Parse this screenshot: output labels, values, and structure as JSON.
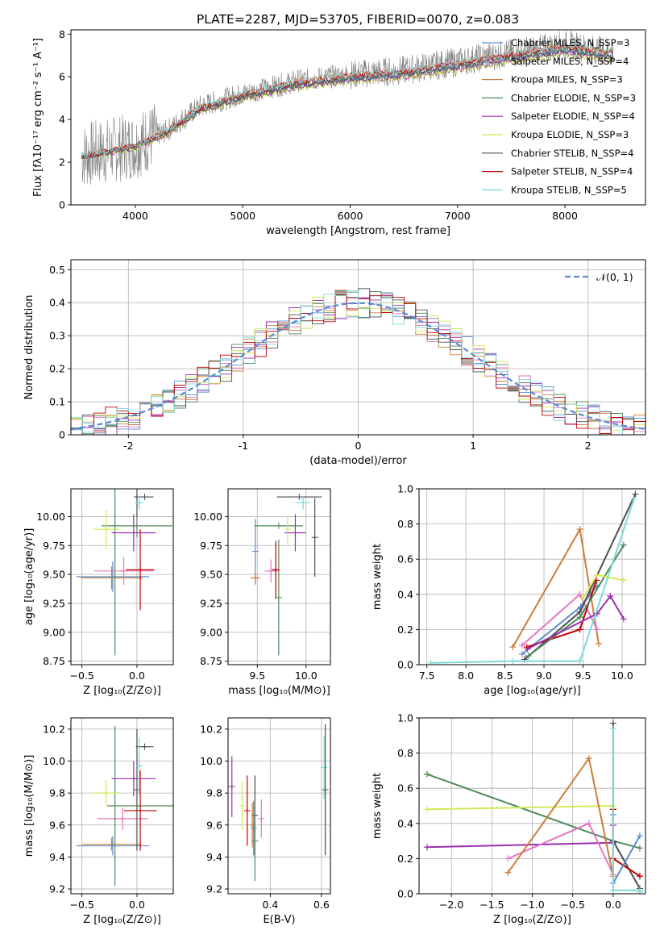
{
  "figure": {
    "title": "PLATE=2287, MJD=53705, FIBERID=0070, z=0.083"
  },
  "chart_data": [
    {
      "id": "spectrum",
      "type": "line",
      "xlabel": "wavelength [Angstrom, rest frame]",
      "ylabel": "Flux [fλ10⁻¹⁷ erg cm⁻² s⁻¹ A⁻¹]",
      "xlim": [
        3400,
        8750
      ],
      "ylim": [
        0,
        8.2
      ],
      "xticks": [
        4000,
        5000,
        6000,
        7000,
        8000
      ],
      "yticks": [
        0,
        2,
        4,
        6,
        8
      ],
      "legend_position": "right",
      "observed_color": "#808080",
      "observed_trend": {
        "x": [
          3500,
          3700,
          4000,
          4300,
          4600,
          5000,
          5500,
          6000,
          6500,
          7000,
          7500,
          8000,
          8400
        ],
        "y": [
          2.3,
          2.5,
          2.8,
          3.5,
          4.6,
          5.2,
          5.8,
          6.1,
          6.3,
          6.7,
          7.1,
          7.5,
          7.2
        ]
      },
      "series": [
        {
          "name": "Chabrier MILES, N_SSP=3",
          "color": "#5b8bd0"
        },
        {
          "name": "Salpeter MILES, N_SSP=4",
          "color": "#e377c2"
        },
        {
          "name": "Kroupa MILES, N_SSP=3",
          "color": "#c87f3a"
        },
        {
          "name": "Chabrier ELODIE, N_SSP=3",
          "color": "#4f8a5b"
        },
        {
          "name": "Salpeter ELODIE, N_SSP=4",
          "color": "#9b2fae"
        },
        {
          "name": "Kroupa ELODIE, N_SSP=3",
          "color": "#d4e85a"
        },
        {
          "name": "Chabrier STELIB, N_SSP=4",
          "color": "#4d4d4d"
        },
        {
          "name": "Salpeter STELIB, N_SSP=4",
          "color": "#c00000"
        },
        {
          "name": "Kroupa STELIB, N_SSP=5",
          "color": "#7fd8d8"
        }
      ]
    },
    {
      "id": "residuals",
      "type": "line",
      "xlabel": "(data-model)/error",
      "ylabel": "Normed distribution",
      "xlim": [
        -2.5,
        2.5
      ],
      "ylim": [
        0,
        0.53
      ],
      "xticks": [
        -2,
        -1,
        0,
        1,
        2
      ],
      "yticks": [
        0.0,
        0.1,
        0.2,
        0.3,
        0.4,
        0.5
      ],
      "grid": true,
      "legend_position": "top-right",
      "reference": {
        "name": "𝒩(0, 1)",
        "color": "#5b8bd0",
        "style": "dashed"
      }
    },
    {
      "id": "age_vs_Z",
      "type": "scatter",
      "xlabel": "Z [log₁₀(Z/Z⊙)]",
      "ylabel": "age  [log₁₀(age/yr)]",
      "xlim": [
        -0.6,
        0.33
      ],
      "ylim": [
        8.72,
        10.24
      ],
      "xticks": [
        -0.5,
        0.0
      ],
      "xtick_labels": [
        "−0.5",
        "0.0"
      ],
      "yticks": [
        8.75,
        9.0,
        9.25,
        9.5,
        9.75,
        10.0
      ],
      "ytick_labels": [
        "8.75",
        "9.00",
        "9.25",
        "9.50",
        "9.75",
        "10.00"
      ],
      "grid": true,
      "points": [
        {
          "x": -0.22,
          "y": 9.48,
          "xerr": 0.33,
          "yerr": 0.13,
          "color": "#5b8bd0"
        },
        {
          "x": -0.12,
          "y": 9.53,
          "xerr": 0.27,
          "yerr": 0.12,
          "color": "#e377c2"
        },
        {
          "x": -0.23,
          "y": 9.47,
          "xerr": 0.28,
          "yerr": 0.1,
          "color": "#c87f3a"
        },
        {
          "x": 0.0,
          "y": 9.92,
          "xerr": 0.32,
          "yerr": 0.1,
          "color": "#4f8a5b"
        },
        {
          "x": -0.2,
          "y": 9.92,
          "xerr": 0.0,
          "yerr": 1.12,
          "color": "#4f8a5b"
        },
        {
          "x": -0.03,
          "y": 9.86,
          "xerr": 0.2,
          "yerr": 0.16,
          "color": "#9b2fae"
        },
        {
          "x": -0.28,
          "y": 9.89,
          "xerr": 0.12,
          "yerr": 0.17,
          "color": "#d4e85a"
        },
        {
          "x": 0.07,
          "y": 10.17,
          "xerr": 0.08,
          "yerr": 0.0,
          "color": "#4d4d4d"
        },
        {
          "x": 0.0,
          "y": 10.17,
          "xerr": 0.0,
          "yerr": 0.17,
          "color": "#4d4d4d"
        },
        {
          "x": 0.03,
          "y": 9.54,
          "xerr": 0.13,
          "yerr": 0.35,
          "color": "#c00000"
        },
        {
          "x": 0.02,
          "y": 10.12,
          "xerr": 0.04,
          "yerr": 0.06,
          "color": "#7fd8d8"
        }
      ]
    },
    {
      "id": "age_vs_mass",
      "type": "scatter",
      "xlabel": "mass [log₁₀(M/M⊙)]",
      "ylabel": "",
      "xlim": [
        9.2,
        10.25
      ],
      "ylim": [
        8.72,
        10.24
      ],
      "xticks": [
        9.5,
        10.0
      ],
      "xtick_labels": [
        "9.5",
        "10.0"
      ],
      "yticks": [
        8.75,
        9.0,
        9.25,
        9.5,
        9.75,
        10.0
      ],
      "ytick_labels": [
        "8.75",
        "9.00",
        "9.25",
        "9.50",
        "9.75",
        "10.00"
      ],
      "grid": true,
      "points": [
        {
          "x": 9.48,
          "y": 9.7,
          "xerr": 0.0,
          "yerr": 0.28,
          "color": "#5b8bd0"
        },
        {
          "x": 9.64,
          "y": 9.53,
          "xerr": 0.07,
          "yerr": 0.1,
          "color": "#e377c2"
        },
        {
          "x": 9.48,
          "y": 9.47,
          "xerr": 0.05,
          "yerr": 0.06,
          "color": "#c87f3a"
        },
        {
          "x": 9.72,
          "y": 9.92,
          "xerr": 0.25,
          "yerr": 0.0,
          "color": "#4f8a5b"
        },
        {
          "x": 9.72,
          "y": 9.3,
          "xerr": 0.0,
          "yerr": 0.5,
          "color": "#4f8a5b"
        },
        {
          "x": 9.89,
          "y": 9.86,
          "xerr": 0.11,
          "yerr": 0.16,
          "color": "#9b2fae"
        },
        {
          "x": 9.81,
          "y": 9.89,
          "xerr": 0.0,
          "yerr": 0.12,
          "color": "#d4e85a"
        },
        {
          "x": 9.93,
          "y": 10.17,
          "xerr": 0.23,
          "yerr": 0.0,
          "color": "#4d4d4d"
        },
        {
          "x": 10.09,
          "y": 9.82,
          "xerr": 0.0,
          "yerr": 0.34,
          "color": "#4d4d4d"
        },
        {
          "x": 9.69,
          "y": 9.54,
          "xerr": 0.04,
          "yerr": 0.25,
          "color": "#c00000"
        },
        {
          "x": 9.97,
          "y": 10.12,
          "xerr": 0.08,
          "yerr": 0.06,
          "color": "#7fd8d8"
        }
      ]
    },
    {
      "id": "massweight_vs_age",
      "type": "line",
      "xlabel": "age  [log₁₀(age/yr)]",
      "ylabel": "mass weight",
      "xlim": [
        7.4,
        10.3
      ],
      "ylim": [
        0,
        1.0
      ],
      "xticks": [
        7.5,
        8.0,
        8.5,
        9.0,
        9.5,
        10.0
      ],
      "xtick_labels": [
        "7.5",
        "8.0",
        "8.5",
        "9.0",
        "9.5",
        "10.0"
      ],
      "yticks": [
        0,
        0.2,
        0.4,
        0.6,
        0.8,
        1.0
      ],
      "ytick_labels": [
        "0.0",
        "0.2",
        "0.4",
        "0.6",
        "0.8",
        "1.0"
      ],
      "grid": true,
      "series": [
        {
          "color": "#c87f3a",
          "x": [
            8.6,
            9.46,
            9.7
          ],
          "y": [
            0.1,
            0.77,
            0.12
          ]
        },
        {
          "color": "#e377c2",
          "x": [
            8.72,
            9.46,
            9.68
          ],
          "y": [
            0.11,
            0.4,
            0.2
          ]
        },
        {
          "color": "#5b8bd0",
          "x": [
            8.72,
            9.47,
            9.68
          ],
          "y": [
            0.06,
            0.33,
            0.45
          ]
        },
        {
          "color": "#4d4d4d",
          "x": [
            8.75,
            9.46,
            10.17
          ],
          "y": [
            0.03,
            0.3,
            0.97
          ]
        },
        {
          "color": "#c00000",
          "x": [
            8.78,
            9.46,
            9.67
          ],
          "y": [
            0.1,
            0.2,
            0.48
          ]
        },
        {
          "color": "#4f8a5b",
          "x": [
            8.8,
            9.46,
            10.02
          ],
          "y": [
            0.05,
            0.27,
            0.68
          ]
        },
        {
          "color": "#9b2fae",
          "x": [
            8.79,
            9.68,
            9.85,
            10.02
          ],
          "y": [
            0.09,
            0.29,
            0.39,
            0.26
          ]
        },
        {
          "color": "#d4e85a",
          "x": [
            9.5,
            9.68,
            10.02
          ],
          "y": [
            0.38,
            0.51,
            0.48
          ]
        },
        {
          "color": "#7fd8d8",
          "x": [
            7.55,
            8.6,
            9.46,
            10.15
          ],
          "y": [
            0.01,
            0.02,
            0.02,
            0.94
          ]
        }
      ]
    },
    {
      "id": "mass_vs_Z",
      "type": "scatter",
      "xlabel": "Z [log₁₀(Z/Z⊙)]",
      "ylabel": "mass [log₁₀(M/M⊙)]",
      "xlim": [
        -0.6,
        0.33
      ],
      "ylim": [
        9.17,
        10.27
      ],
      "xticks": [
        -0.5,
        0.0
      ],
      "xtick_labels": [
        "−0.5",
        "0.0"
      ],
      "yticks": [
        9.2,
        9.4,
        9.6,
        9.8,
        10.0,
        10.2
      ],
      "ytick_labels": [
        "9.2",
        "9.4",
        "9.6",
        "9.8",
        "10.0",
        "10.2"
      ],
      "grid": true,
      "points": [
        {
          "x": -0.22,
          "y": 9.47,
          "xerr": 0.33,
          "yerr": 0.06,
          "color": "#5b8bd0"
        },
        {
          "x": -0.13,
          "y": 9.64,
          "xerr": 0.23,
          "yerr": 0.07,
          "color": "#e377c2"
        },
        {
          "x": -0.23,
          "y": 9.48,
          "xerr": 0.27,
          "yerr": 0.04,
          "color": "#c87f3a"
        },
        {
          "x": 0.03,
          "y": 9.72,
          "xerr": 0.3,
          "yerr": 0.0,
          "color": "#4f8a5b"
        },
        {
          "x": -0.2,
          "y": 9.72,
          "xerr": 0.0,
          "yerr": 0.5,
          "color": "#4f8a5b"
        },
        {
          "x": -0.03,
          "y": 9.89,
          "xerr": 0.2,
          "yerr": 0.11,
          "color": "#9b2fae"
        },
        {
          "x": -0.28,
          "y": 9.8,
          "xerr": 0.12,
          "yerr": 0.08,
          "color": "#d4e85a"
        },
        {
          "x": 0.07,
          "y": 10.09,
          "xerr": 0.08,
          "yerr": 0.0,
          "color": "#4d4d4d"
        },
        {
          "x": 0.0,
          "y": 9.82,
          "xerr": 0.0,
          "yerr": 0.38,
          "color": "#4d4d4d"
        },
        {
          "x": 0.03,
          "y": 9.69,
          "xerr": 0.15,
          "yerr": 0.25,
          "color": "#c00000"
        },
        {
          "x": 0.02,
          "y": 9.97,
          "xerr": 0.03,
          "yerr": 0.18,
          "color": "#7fd8d8"
        }
      ]
    },
    {
      "id": "mass_vs_EBV",
      "type": "scatter",
      "xlabel": "E(B-V)",
      "ylabel": "",
      "xlim": [
        0.235,
        0.635
      ],
      "ylim": [
        9.17,
        10.27
      ],
      "xticks": [
        0.4,
        0.6
      ],
      "xtick_labels": [
        "0.4",
        "0.6"
      ],
      "yticks": [
        9.2,
        9.4,
        9.6,
        9.8,
        10.0,
        10.2
      ],
      "ytick_labels": [
        "9.2",
        "9.4",
        "9.6",
        "9.8",
        "10.0",
        "10.2"
      ],
      "grid": true,
      "points": [
        {
          "x": 0.25,
          "y": 9.84,
          "xerr": 0.0,
          "yerr": 0.19,
          "color": "#9b2fae"
        },
        {
          "x": 0.29,
          "y": 9.72,
          "xerr": 0.0,
          "yerr": 0.15,
          "color": "#d4e85a"
        },
        {
          "x": 0.31,
          "y": 9.69,
          "xerr": 0.0,
          "yerr": 0.22,
          "color": "#c00000"
        },
        {
          "x": 0.33,
          "y": 9.6,
          "xerr": 0.0,
          "yerr": 0.14,
          "color": "#c87f3a"
        },
        {
          "x": 0.335,
          "y": 9.58,
          "xerr": 0.0,
          "yerr": 0.17,
          "color": "#5b8bd0"
        },
        {
          "x": 0.34,
          "y": 9.66,
          "xerr": 0.0,
          "yerr": 0.25,
          "color": "#4d4d4d"
        },
        {
          "x": 0.34,
          "y": 9.5,
          "xerr": 0.0,
          "yerr": 0.25,
          "color": "#4f8a5b"
        },
        {
          "x": 0.365,
          "y": 9.64,
          "xerr": 0.0,
          "yerr": 0.12,
          "color": "#e377c2"
        },
        {
          "x": 0.61,
          "y": 9.96,
          "xerr": 0.0,
          "yerr": 0.2,
          "color": "#7fd8d8"
        },
        {
          "x": 0.615,
          "y": 9.82,
          "xerr": 0.0,
          "yerr": 0.41,
          "color": "#4d4d4d"
        }
      ]
    },
    {
      "id": "massweight_vs_Z",
      "type": "line",
      "xlabel": "Z [log₁₀(Z/Z⊙)]",
      "ylabel": "mass weight",
      "xlim": [
        -2.4,
        0.4
      ],
      "ylim": [
        0,
        1.0
      ],
      "xticks": [
        -2.0,
        -1.5,
        -1.0,
        -0.5,
        0.0
      ],
      "xtick_labels": [
        "−2.0",
        "−1.5",
        "−1.0",
        "−0.5",
        "0.0"
      ],
      "yticks": [
        0,
        0.2,
        0.4,
        0.6,
        0.8,
        1.0
      ],
      "ytick_labels": [
        "0.0",
        "0.2",
        "0.4",
        "0.6",
        "0.8",
        "1.0"
      ],
      "grid": true,
      "series": [
        {
          "color": "#4f8a5b",
          "x": [
            -2.3,
            0.0,
            0.33
          ],
          "y": [
            0.68,
            0.3,
            0.26
          ]
        },
        {
          "color": "#d4e85a",
          "x": [
            -2.3,
            0.0,
            0.0
          ],
          "y": [
            0.48,
            0.5,
            0.48
          ]
        },
        {
          "color": "#9b2fae",
          "x": [
            -2.3,
            0.0,
            0.0
          ],
          "y": [
            0.265,
            0.29,
            0.39
          ]
        },
        {
          "color": "#e377c2",
          "x": [
            -1.3,
            -0.3,
            0.0
          ],
          "y": [
            0.2,
            0.4,
            0.11
          ]
        },
        {
          "color": "#c87f3a",
          "x": [
            -1.3,
            -0.3,
            0.0
          ],
          "y": [
            0.12,
            0.77,
            0.1
          ]
        },
        {
          "color": "#4d4d4d",
          "x": [
            0.0,
            0.0,
            0.33
          ],
          "y": [
            0.97,
            0.3,
            0.03
          ]
        },
        {
          "color": "#c00000",
          "x": [
            0.0,
            0.0,
            0.33,
            0.33
          ],
          "y": [
            0.48,
            0.2,
            0.1,
            0.1
          ]
        },
        {
          "color": "#5b8bd0",
          "x": [
            0.0,
            0.0,
            0.33
          ],
          "y": [
            0.45,
            0.06,
            0.33
          ]
        },
        {
          "color": "#7fd8d8",
          "x": [
            0.0,
            0.0,
            0.33,
            0.33
          ],
          "y": [
            0.94,
            0.02,
            0.02,
            0.01
          ]
        }
      ]
    }
  ]
}
